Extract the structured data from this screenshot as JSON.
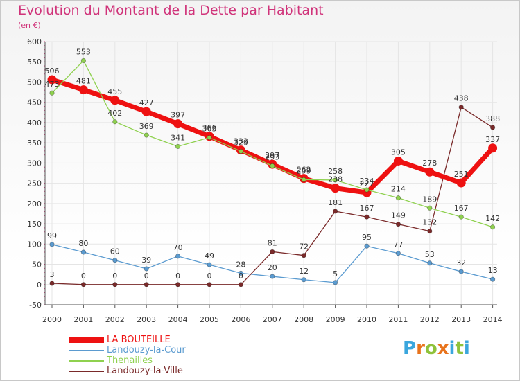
{
  "header": {
    "title": "Evolution du Montant de la Dette par Habitant",
    "unit": "(en €)"
  },
  "colors": {
    "title": "#d0337a",
    "grid": "#e5e5e5"
  },
  "logo": {
    "letters": [
      "P",
      "r",
      "o",
      "x",
      "i",
      "t",
      "i"
    ],
    "colors": [
      "#3aa6dd",
      "#e8731c",
      "#8fc23a",
      "#e8731c",
      "#3aa6dd",
      "#8fc23a",
      "#3aa6dd"
    ]
  },
  "chart_data": {
    "type": "line",
    "categories": [
      "2000",
      "2001",
      "2002",
      "2003",
      "2004",
      "2005",
      "2006",
      "2007",
      "2008",
      "2009",
      "2010",
      "2011",
      "2012",
      "2013",
      "2014"
    ],
    "y_ticks": [
      "-50",
      "0",
      "50",
      "100",
      "150",
      "200",
      "250",
      "300",
      "350",
      "400",
      "450",
      "500",
      "550",
      "600"
    ],
    "ylim": [
      -50,
      600
    ],
    "grid": true,
    "legend_position": "bottom-left",
    "series": [
      {
        "name": "LA BOUTEILLE",
        "color": "#ee1111",
        "values": [
          506,
          481,
          455,
          427,
          397,
          366,
          332,
          297,
          262,
          238,
          227,
          305,
          278,
          251,
          337
        ],
        "labels": [
          "506",
          "481",
          "455",
          "427",
          "397",
          "366",
          "332",
          "297",
          "262",
          "238",
          "227",
          "305",
          "278",
          "251",
          "337"
        ]
      },
      {
        "name": "Landouzy-la-Cour",
        "color": "#5b9bd0",
        "values": [
          99,
          80,
          60,
          39,
          70,
          49,
          28,
          20,
          12,
          5,
          95,
          77,
          53,
          32,
          13
        ],
        "labels": [
          "99",
          "80",
          "60",
          "39",
          "70",
          "49",
          "28",
          "20",
          "12",
          "5",
          "95",
          "77",
          "53",
          "32",
          "13"
        ]
      },
      {
        "name": "Thenailles",
        "color": "#8fd14f",
        "values": [
          473,
          553,
          402,
          369,
          341,
          363,
          329,
          293,
          259,
          258,
          234,
          214,
          189,
          167,
          142
        ],
        "labels": [
          "473",
          "553",
          "402",
          "369",
          "341",
          "363",
          "329",
          "293",
          "259",
          "258",
          "234",
          "214",
          "189",
          "167",
          "142"
        ]
      },
      {
        "name": "Landouzy-la-Ville",
        "color": "#7a2a2a",
        "values": [
          3,
          0,
          0,
          0,
          0,
          0,
          0,
          81,
          72,
          181,
          167,
          149,
          132,
          438,
          388
        ],
        "labels": [
          "3",
          "0",
          "0",
          "0",
          "0",
          "0",
          "0",
          "81",
          "72",
          "181",
          "167",
          "149",
          "132",
          "438",
          "388"
        ]
      }
    ]
  }
}
